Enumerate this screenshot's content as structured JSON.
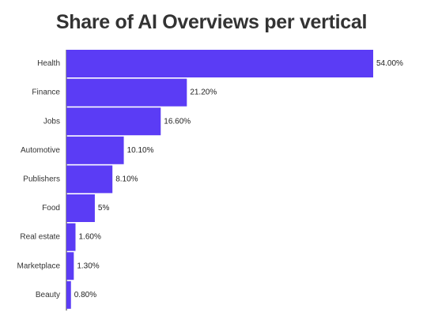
{
  "chart_data": {
    "type": "bar",
    "orientation": "horizontal",
    "title": "Share of AI Overviews per vertical",
    "categories": [
      "Health",
      "Finance",
      "Jobs",
      "Automotive",
      "Publishers",
      "Food",
      "Real estate",
      "Marketplace",
      "Beauty"
    ],
    "values": [
      54.0,
      21.2,
      16.6,
      10.1,
      8.1,
      5,
      1.6,
      1.3,
      0.8
    ],
    "value_labels": [
      "54.00%",
      "21.20%",
      "16.60%",
      "10.10%",
      "8.10%",
      "5%",
      "1.60%",
      "1.30%",
      "0.80%"
    ],
    "xlabel": "",
    "ylabel": "",
    "xlim": [
      0,
      54
    ],
    "grid": false,
    "legend": "none",
    "bar_color": "#5b3cf5"
  }
}
